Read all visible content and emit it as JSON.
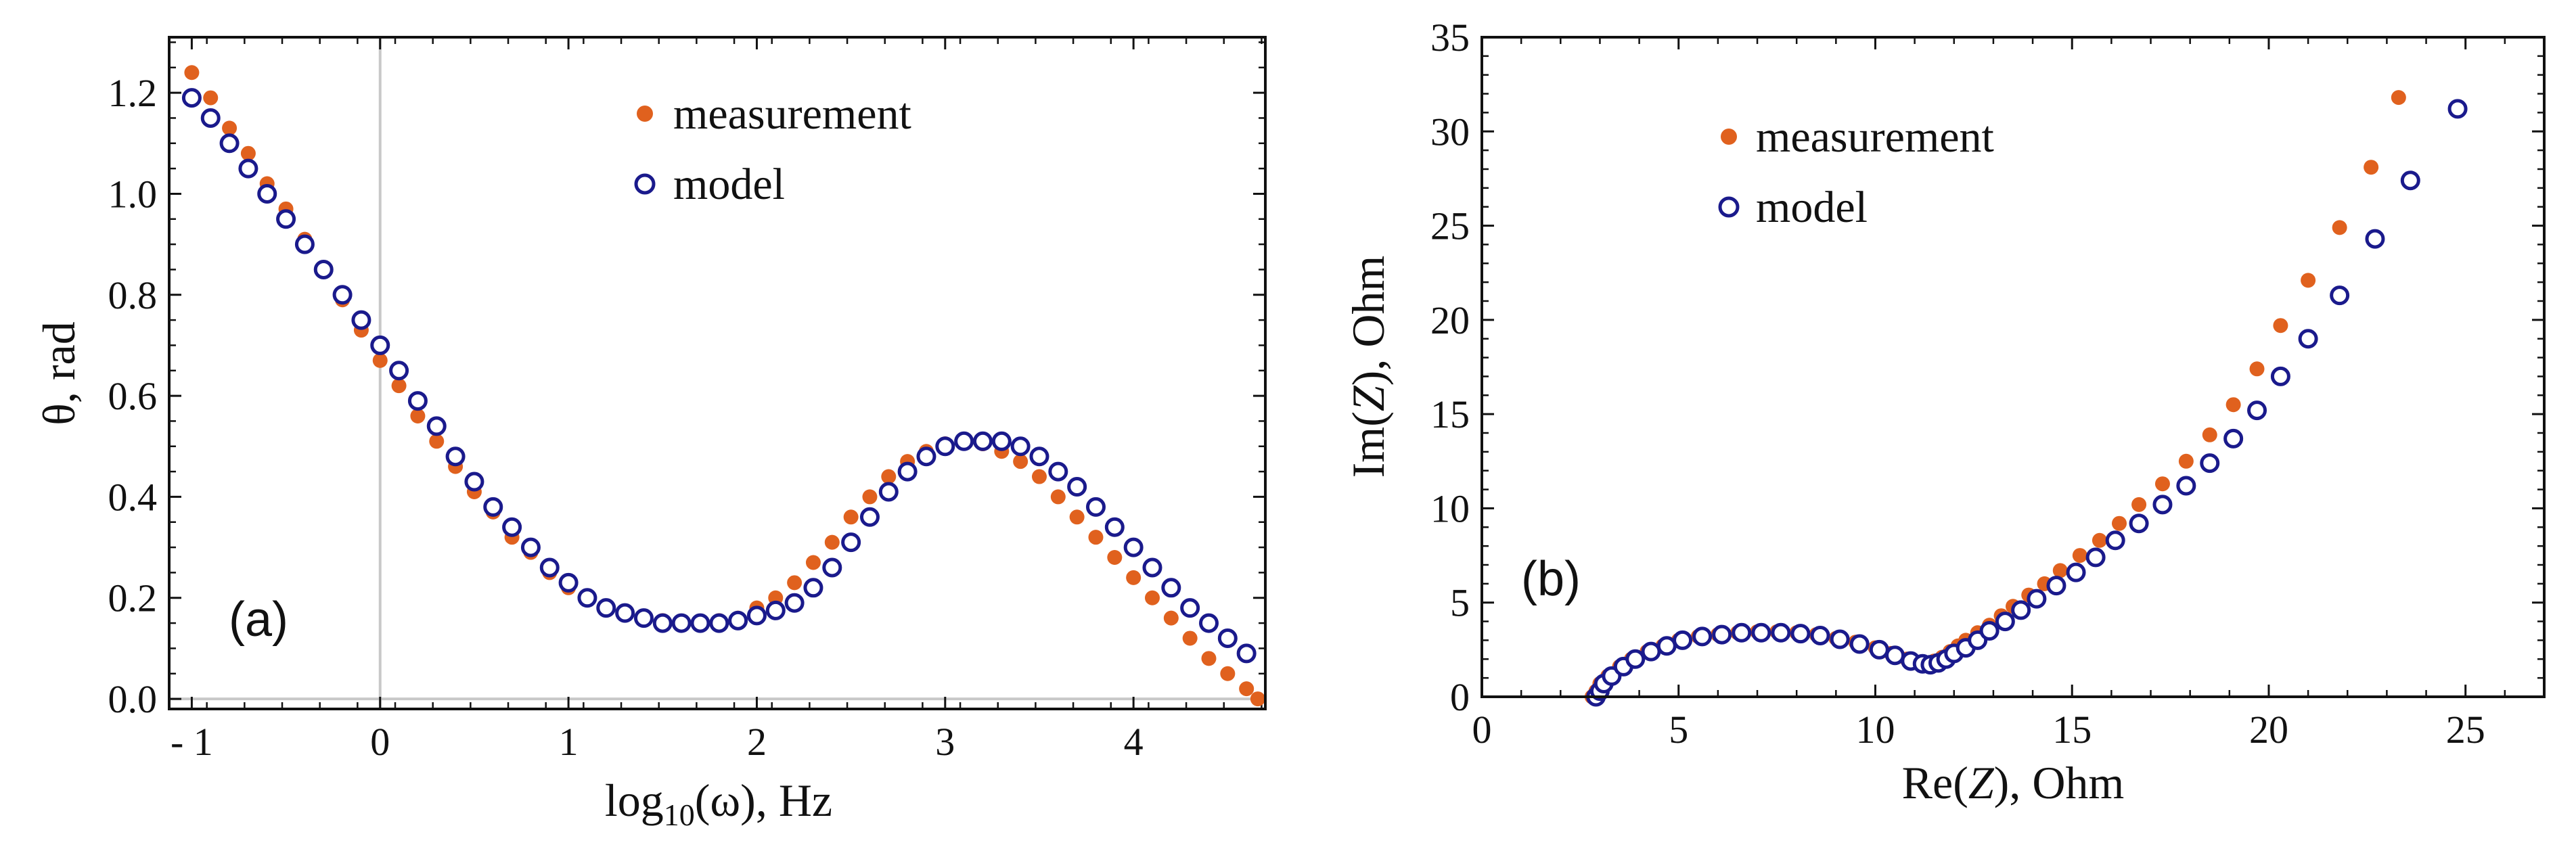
{
  "colors": {
    "measurement": "#e0611e",
    "model": "#1a1a8c",
    "axis": "#111111",
    "refline": "#c8c8c8"
  },
  "chart_data": [
    {
      "type": "scatter",
      "panel_label": "(a)",
      "xlabel_main": "log",
      "xlabel_sub": "10",
      "xlabel_rest": "(ω), Hz",
      "ylabel": "θ, rad",
      "xlim": [
        -1.12,
        4.7
      ],
      "ylim": [
        -0.02,
        1.31
      ],
      "xticks": [
        -1,
        0,
        1,
        2,
        3,
        4
      ],
      "xtick_labels": [
        "- 1",
        "0",
        "1",
        "2",
        "3",
        "4"
      ],
      "yticks": [
        0.0,
        0.2,
        0.4,
        0.6,
        0.8,
        1.0,
        1.2
      ],
      "ytick_labels": [
        "0.0",
        "0.2",
        "0.4",
        "0.6",
        "0.8",
        "1.0",
        "1.2"
      ],
      "reference_lines": {
        "x": 0,
        "y": 0
      },
      "legend": {
        "position": "top-right",
        "entries": [
          "measurement",
          "model"
        ]
      },
      "series": [
        {
          "name": "measurement",
          "marker": "filled-circle",
          "x": [
            -1.0,
            -0.9,
            -0.8,
            -0.7,
            -0.6,
            -0.5,
            -0.4,
            -0.3,
            -0.2,
            -0.1,
            0.0,
            0.1,
            0.2,
            0.3,
            0.4,
            0.5,
            0.6,
            0.7,
            0.8,
            0.9,
            1.0,
            1.1,
            1.2,
            1.3,
            1.4,
            1.5,
            1.6,
            1.7,
            1.8,
            1.9,
            2.0,
            2.1,
            2.2,
            2.3,
            2.4,
            2.5,
            2.6,
            2.7,
            2.8,
            2.9,
            3.0,
            3.1,
            3.2,
            3.3,
            3.4,
            3.5,
            3.6,
            3.7,
            3.8,
            3.9,
            4.0,
            4.1,
            4.2,
            4.3,
            4.4,
            4.5,
            4.6,
            4.66
          ],
          "y": [
            1.24,
            1.19,
            1.13,
            1.08,
            1.02,
            0.97,
            0.91,
            0.85,
            0.79,
            0.73,
            0.67,
            0.62,
            0.56,
            0.51,
            0.46,
            0.41,
            0.37,
            0.32,
            0.29,
            0.25,
            0.22,
            0.2,
            0.18,
            0.17,
            0.16,
            0.155,
            0.15,
            0.15,
            0.155,
            0.16,
            0.18,
            0.2,
            0.23,
            0.27,
            0.31,
            0.36,
            0.4,
            0.44,
            0.47,
            0.49,
            0.505,
            0.51,
            0.505,
            0.49,
            0.47,
            0.44,
            0.4,
            0.36,
            0.32,
            0.28,
            0.24,
            0.2,
            0.16,
            0.12,
            0.08,
            0.05,
            0.02,
            0.0
          ]
        },
        {
          "name": "model",
          "marker": "open-circle",
          "x": [
            -1.0,
            -0.9,
            -0.8,
            -0.7,
            -0.6,
            -0.5,
            -0.4,
            -0.3,
            -0.2,
            -0.1,
            0.0,
            0.1,
            0.2,
            0.3,
            0.4,
            0.5,
            0.6,
            0.7,
            0.8,
            0.9,
            1.0,
            1.1,
            1.2,
            1.3,
            1.4,
            1.5,
            1.6,
            1.7,
            1.8,
            1.9,
            2.0,
            2.1,
            2.2,
            2.3,
            2.4,
            2.5,
            2.6,
            2.7,
            2.8,
            2.9,
            3.0,
            3.1,
            3.2,
            3.3,
            3.4,
            3.5,
            3.6,
            3.7,
            3.8,
            3.9,
            4.0,
            4.1,
            4.2,
            4.3,
            4.4,
            4.5,
            4.6
          ],
          "y": [
            1.19,
            1.15,
            1.1,
            1.05,
            1.0,
            0.95,
            0.9,
            0.85,
            0.8,
            0.75,
            0.7,
            0.65,
            0.59,
            0.54,
            0.48,
            0.43,
            0.38,
            0.34,
            0.3,
            0.26,
            0.23,
            0.2,
            0.18,
            0.17,
            0.16,
            0.15,
            0.15,
            0.15,
            0.15,
            0.155,
            0.165,
            0.175,
            0.19,
            0.22,
            0.26,
            0.31,
            0.36,
            0.41,
            0.45,
            0.48,
            0.5,
            0.51,
            0.51,
            0.51,
            0.5,
            0.48,
            0.45,
            0.42,
            0.38,
            0.34,
            0.3,
            0.26,
            0.22,
            0.18,
            0.15,
            0.12,
            0.09
          ]
        }
      ]
    },
    {
      "type": "scatter",
      "panel_label": "(b)",
      "xlabel": "Re(Z), Ohm",
      "xlabel_pre": "Re(",
      "xlabel_var": "Z",
      "xlabel_post": "), Ohm",
      "ylabel": "Im(Z), Ohm",
      "ylabel_pre": "Im(",
      "ylabel_var": "Z",
      "ylabel_post": "), Ohm",
      "xlim": [
        0,
        27
      ],
      "ylim": [
        0,
        35
      ],
      "xticks": [
        0,
        5,
        10,
        15,
        20,
        25
      ],
      "xtick_labels": [
        "0",
        "5",
        "10",
        "15",
        "20",
        "25"
      ],
      "yticks": [
        0,
        5,
        10,
        15,
        20,
        25,
        30,
        35
      ],
      "ytick_labels": [
        "0",
        "5",
        "10",
        "15",
        "20",
        "25",
        "30",
        "35"
      ],
      "legend": {
        "position": "top-left",
        "entries": [
          "measurement",
          "model"
        ]
      },
      "series": [
        {
          "name": "measurement",
          "marker": "filled-circle",
          "x": [
            2.8,
            2.9,
            3.0,
            3.2,
            3.5,
            3.8,
            4.2,
            4.6,
            5.0,
            5.5,
            6.0,
            6.5,
            7.0,
            7.5,
            8.0,
            8.5,
            9.0,
            9.5,
            10.0,
            10.4,
            10.8,
            11.1,
            11.3,
            11.5,
            11.7,
            11.9,
            12.1,
            12.3,
            12.6,
            12.9,
            13.2,
            13.5,
            13.9,
            14.3,
            14.7,
            15.2,
            15.7,
            16.2,
            16.7,
            17.3,
            17.9,
            18.5,
            19.1,
            19.7,
            20.3,
            21.0,
            21.8,
            22.6,
            23.3
          ],
          "y": [
            0.0,
            0.3,
            0.7,
            1.1,
            1.6,
            2.0,
            2.4,
            2.7,
            3.0,
            3.2,
            3.3,
            3.4,
            3.45,
            3.45,
            3.4,
            3.3,
            3.1,
            2.9,
            2.6,
            2.3,
            2.0,
            1.8,
            1.8,
            1.9,
            2.1,
            2.4,
            2.7,
            3.0,
            3.4,
            3.8,
            4.3,
            4.8,
            5.4,
            6.0,
            6.7,
            7.5,
            8.3,
            9.2,
            10.2,
            11.3,
            12.5,
            13.9,
            15.5,
            17.4,
            19.7,
            22.1,
            24.9,
            28.1,
            31.8
          ]
        },
        {
          "name": "model",
          "marker": "open-circle",
          "x": [
            2.9,
            3.0,
            3.1,
            3.3,
            3.6,
            3.9,
            4.3,
            4.7,
            5.1,
            5.6,
            6.1,
            6.6,
            7.1,
            7.6,
            8.1,
            8.6,
            9.1,
            9.6,
            10.1,
            10.5,
            10.9,
            11.2,
            11.4,
            11.6,
            11.8,
            12.0,
            12.3,
            12.6,
            12.9,
            13.3,
            13.7,
            14.1,
            14.6,
            15.1,
            15.6,
            16.1,
            16.7,
            17.3,
            17.9,
            18.5,
            19.1,
            19.7,
            20.3,
            21.0,
            21.8,
            22.7,
            23.6,
            24.8
          ],
          "y": [
            0.0,
            0.3,
            0.7,
            1.1,
            1.6,
            2.0,
            2.4,
            2.7,
            3.0,
            3.2,
            3.3,
            3.4,
            3.4,
            3.4,
            3.35,
            3.25,
            3.05,
            2.8,
            2.5,
            2.2,
            1.9,
            1.75,
            1.7,
            1.8,
            2.0,
            2.3,
            2.6,
            3.0,
            3.5,
            4.0,
            4.6,
            5.2,
            5.9,
            6.6,
            7.4,
            8.3,
            9.2,
            10.2,
            11.2,
            12.4,
            13.7,
            15.2,
            17.0,
            19.0,
            21.3,
            24.3,
            27.4,
            31.2
          ]
        }
      ]
    }
  ]
}
